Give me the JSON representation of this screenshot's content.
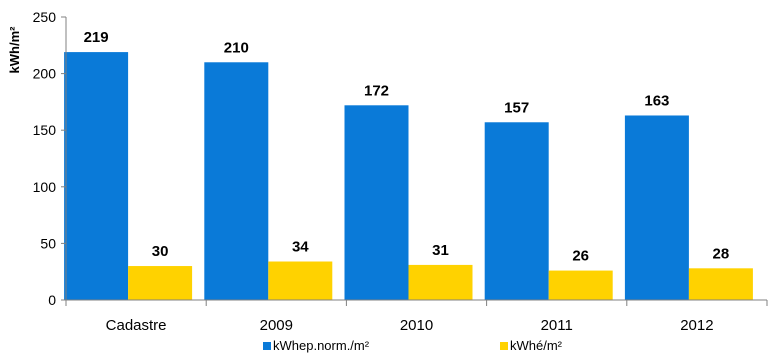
{
  "chart_data": {
    "type": "bar",
    "categories": [
      "Cadastre",
      "2009",
      "2010",
      "2011",
      "2012"
    ],
    "series": [
      {
        "name": "kWhep.norm./m²",
        "values": [
          219,
          210,
          172,
          157,
          163
        ],
        "color": "#0A7AD8"
      },
      {
        "name": "kWhé/m²",
        "values": [
          30,
          34,
          31,
          26,
          28
        ],
        "color": "#FFD200"
      }
    ],
    "ylabel": "kWh/m²",
    "ylim": [
      0,
      250
    ],
    "yticks": [
      0,
      50,
      100,
      150,
      200,
      250
    ],
    "grid": false,
    "legend": "bottom",
    "data_labels": true
  }
}
